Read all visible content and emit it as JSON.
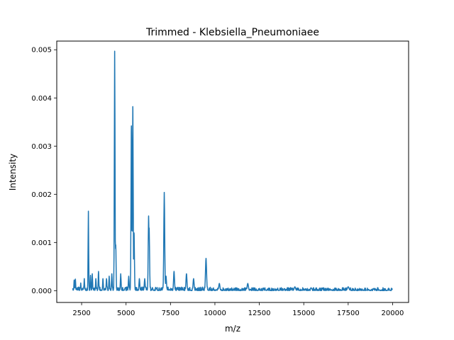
{
  "chart_data": {
    "type": "line",
    "title": "Trimmed - Klebsiella_Pneumoniaee",
    "xlabel": "m/z",
    "ylabel": "Intensity",
    "xlim": [
      1100,
      20900
    ],
    "ylim": [
      -0.000245,
      0.00518
    ],
    "x_ticks": [
      2500,
      5000,
      7500,
      10000,
      12500,
      15000,
      17500,
      20000
    ],
    "x_tick_labels": [
      "2500",
      "5000",
      "7500",
      "10000",
      "12500",
      "15000",
      "17500",
      "20000"
    ],
    "y_ticks": [
      0.0,
      0.001,
      0.002,
      0.003,
      0.004,
      0.005
    ],
    "y_tick_labels": [
      "0.000",
      "0.001",
      "0.002",
      "0.003",
      "0.004",
      "0.005"
    ],
    "grid": false,
    "legend": "none",
    "series_color": "#1f77b4",
    "x_range": [
      2000,
      20000
    ],
    "baseline_noise_max": 7e-05,
    "peaks": [
      {
        "x": 2080,
        "y": 0.00022
      },
      {
        "x": 2150,
        "y": 0.00024
      },
      {
        "x": 2450,
        "y": 0.00016
      },
      {
        "x": 2650,
        "y": 0.00025
      },
      {
        "x": 2880,
        "y": 0.00165
      },
      {
        "x": 3000,
        "y": 0.00032
      },
      {
        "x": 3100,
        "y": 0.00035
      },
      {
        "x": 3300,
        "y": 0.00025
      },
      {
        "x": 3450,
        "y": 0.0004
      },
      {
        "x": 3700,
        "y": 0.00025
      },
      {
        "x": 3900,
        "y": 0.00025
      },
      {
        "x": 4050,
        "y": 0.0003
      },
      {
        "x": 4200,
        "y": 0.00035
      },
      {
        "x": 4360,
        "y": 0.00497
      },
      {
        "x": 4420,
        "y": 0.00095
      },
      {
        "x": 4700,
        "y": 0.00035
      },
      {
        "x": 5150,
        "y": 0.0003
      },
      {
        "x": 5300,
        "y": 0.00342
      },
      {
        "x": 5380,
        "y": 0.00382
      },
      {
        "x": 5450,
        "y": 0.0012
      },
      {
        "x": 5750,
        "y": 0.00025
      },
      {
        "x": 6050,
        "y": 0.00025
      },
      {
        "x": 6270,
        "y": 0.00155
      },
      {
        "x": 6300,
        "y": 0.0013
      },
      {
        "x": 7150,
        "y": 0.00204
      },
      {
        "x": 7250,
        "y": 0.0003
      },
      {
        "x": 7700,
        "y": 0.0004
      },
      {
        "x": 8400,
        "y": 0.00035
      },
      {
        "x": 8800,
        "y": 0.00025
      },
      {
        "x": 9500,
        "y": 0.00067
      },
      {
        "x": 10250,
        "y": 0.00015
      },
      {
        "x": 11850,
        "y": 0.00015
      },
      {
        "x": 14500,
        "y": 8e-05
      },
      {
        "x": 17500,
        "y": 8e-05
      }
    ]
  }
}
